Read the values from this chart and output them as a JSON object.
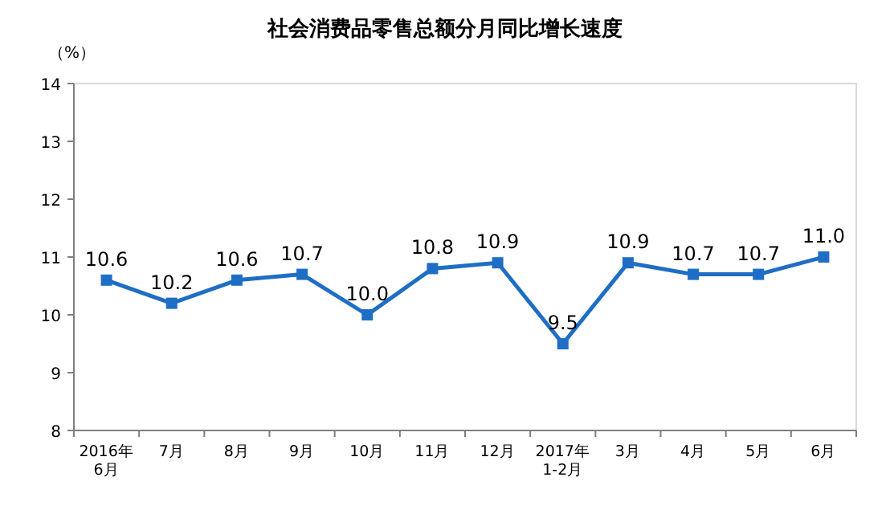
{
  "chart_data": {
    "type": "line",
    "title": "社会消费品零售总额分月同比增长速度",
    "ylabel": "（%）",
    "categories": [
      "2016年\n6月",
      "7月",
      "8月",
      "9月",
      "10月",
      "11月",
      "12月",
      "2017年\n1-2月",
      "3月",
      "4月",
      "5月",
      "6月"
    ],
    "series": [
      {
        "color": "#1f6ec5",
        "values": [
          10.6,
          10.2,
          10.6,
          10.7,
          10.0,
          10.8,
          10.9,
          9.5,
          10.9,
          10.7,
          10.7,
          11.0
        ],
        "value_labels": [
          "10.6",
          "10.2",
          "10.6",
          "10.7",
          "10.0",
          "10.8",
          "10.9",
          "9.5",
          "10.9",
          "10.7",
          "10.7",
          "11.0"
        ]
      }
    ],
    "ylim": [
      8,
      14
    ],
    "yticks": [
      8,
      9,
      10,
      11,
      12,
      13,
      14
    ],
    "marker": "square",
    "line_style": "solid"
  }
}
